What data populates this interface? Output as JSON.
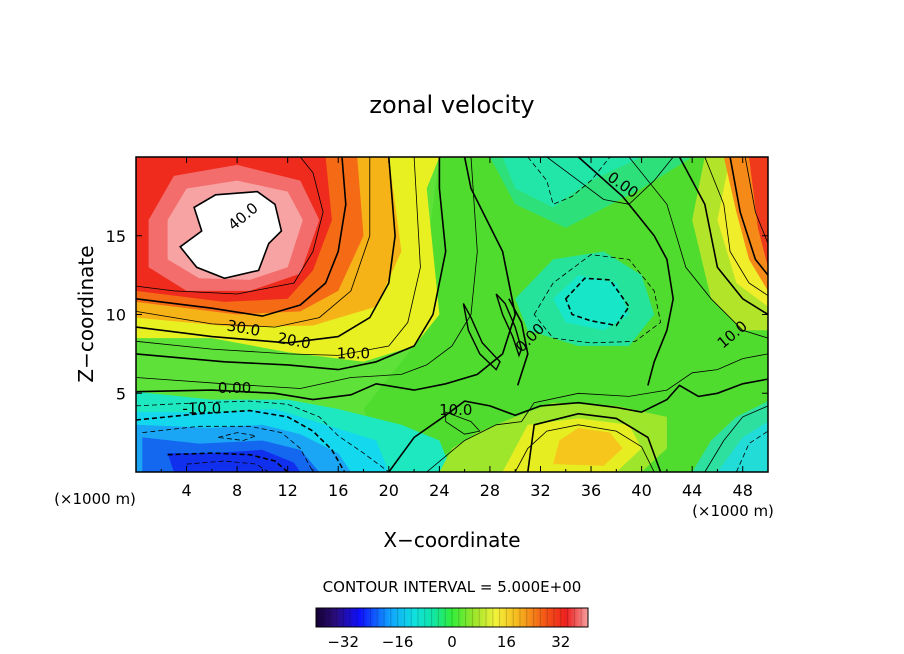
{
  "chart_data": {
    "type": "heatmap",
    "title": "zonal velocity",
    "xlabel": "X−coordinate",
    "ylabel": "Z−coordinate",
    "x_unit_left": "(×1000 m)",
    "x_unit_right": "(×1000 m)",
    "xlim": [
      0,
      50
    ],
    "ylim": [
      0,
      20
    ],
    "x_ticks": [
      4,
      8,
      12,
      16,
      20,
      24,
      28,
      32,
      36,
      40,
      44,
      48
    ],
    "y_ticks": [
      5,
      10,
      15
    ],
    "contour_interval_text": "CONTOUR INTERVAL = 5.000E+00",
    "contour_interval": 5,
    "contour_labels": [
      {
        "text": "40.0",
        "x": 8.5,
        "y": 16.2,
        "angle": 40
      },
      {
        "text": "30.0",
        "x": 8.5,
        "y": 9.1,
        "angle": -10
      },
      {
        "text": "20.0",
        "x": 12.5,
        "y": 8.3,
        "angle": -10
      },
      {
        "text": "10.0",
        "x": 17.2,
        "y": 7.5,
        "angle": 0
      },
      {
        "text": "0.00",
        "x": 7.8,
        "y": 5.3,
        "angle": 0
      },
      {
        "text": "-10.0",
        "x": 5.2,
        "y": 4.0,
        "angle": 0
      },
      {
        "text": "10.0",
        "x": 25.3,
        "y": 3.9,
        "angle": 0
      },
      {
        "text": "0.00",
        "x": 31.2,
        "y": 8.5,
        "angle": 45
      },
      {
        "text": "0.00",
        "x": 38.5,
        "y": 18.2,
        "angle": -35
      },
      {
        "text": "10.0",
        "x": 47.2,
        "y": 8.7,
        "angle": 40
      }
    ],
    "colorbar": {
      "range": [
        -40,
        40
      ],
      "ticks": [
        -32,
        -16,
        0,
        16,
        32
      ],
      "tick_labels": [
        "−32",
        "−16",
        "0",
        "16",
        "32"
      ]
    },
    "field_summary": [
      {
        "feature": "strong westerly core (white, >45)",
        "x": 7,
        "y": 15
      },
      {
        "feature": "negative jet near bottom",
        "x": 8,
        "y": 1,
        "value": -35
      },
      {
        "feature": "weak negative cell",
        "x": 37,
        "y": 10.5,
        "value": -7
      },
      {
        "feature": "weak negative cell",
        "x": 33,
        "y": 19,
        "value": -5
      },
      {
        "feature": "positive cell",
        "x": 36,
        "y": 2.5,
        "value": 18
      },
      {
        "feature": "positive region right edge",
        "x": 49.5,
        "y": 14,
        "value": 30
      }
    ]
  }
}
